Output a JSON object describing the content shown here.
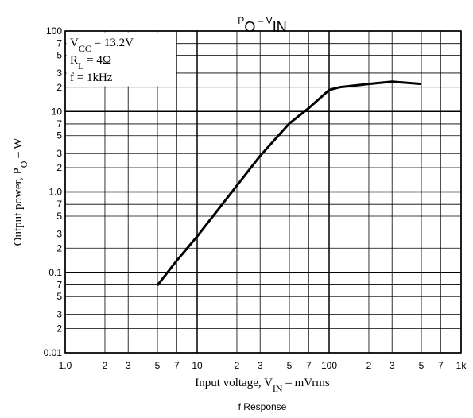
{
  "chart_data": {
    "type": "line",
    "title": [
      {
        "text": "P"
      },
      {
        "text": "O",
        "sub": true
      },
      {
        "text": " – V"
      },
      {
        "text": "IN",
        "sub": true
      }
    ],
    "x_label": [
      {
        "text": "Input voltage, V"
      },
      {
        "text": "IN",
        "sub": true
      },
      {
        "text": " – mVrms"
      }
    ],
    "y_label": [
      {
        "text": "Output power, P"
      },
      {
        "text": "O",
        "sub": true
      },
      {
        "text": " – W"
      }
    ],
    "annotations": [
      [
        {
          "text": "V"
        },
        {
          "text": "CC",
          "sub": true
        },
        {
          "text": " = 13.2V"
        }
      ],
      [
        {
          "text": "R"
        },
        {
          "text": "L",
          "sub": true
        },
        {
          "text": " = 4Ω"
        }
      ],
      [
        {
          "text": "f = 1kHz"
        }
      ]
    ],
    "footer": "f Response",
    "log_x": true,
    "log_y": true,
    "grid": true,
    "xlim": [
      1,
      1000
    ],
    "ylim": [
      0.01,
      100
    ],
    "xticks": [
      {
        "value": 1,
        "label": "1.0"
      },
      2,
      3,
      5,
      7,
      10,
      {
        "value": 20,
        "label": "2"
      },
      {
        "value": 30,
        "label": "3"
      },
      {
        "value": 50,
        "label": "5"
      },
      {
        "value": 70,
        "label": "7"
      },
      100,
      {
        "value": 200,
        "label": "2"
      },
      {
        "value": 300,
        "label": "3"
      },
      {
        "value": 500,
        "label": "5"
      },
      {
        "value": 700,
        "label": "7"
      },
      {
        "value": 1000,
        "label": "1k"
      }
    ],
    "yticks": [
      0.01,
      {
        "value": 0.02,
        "label": "2"
      },
      {
        "value": 0.03,
        "label": "3"
      },
      {
        "value": 0.05,
        "label": "5"
      },
      {
        "value": 0.07,
        "label": "7"
      },
      0.1,
      {
        "value": 0.2,
        "label": "2"
      },
      {
        "value": 0.3,
        "label": "3"
      },
      {
        "value": 0.5,
        "label": "5"
      },
      {
        "value": 0.7,
        "label": "7"
      },
      {
        "value": 1,
        "label": "1.0"
      },
      2,
      3,
      5,
      7,
      10,
      {
        "value": 20,
        "label": "2"
      },
      {
        "value": 30,
        "label": "3"
      },
      {
        "value": 50,
        "label": "5"
      },
      {
        "value": 70,
        "label": "7"
      },
      100
    ],
    "series": [
      {
        "color": "#000000",
        "x": [
          5,
          7,
          10,
          20,
          30,
          50,
          70,
          100,
          120,
          200,
          300,
          500
        ],
        "values": [
          0.069,
          0.14,
          0.28,
          1.2,
          2.8,
          7.1,
          11,
          18.5,
          20,
          22,
          23.5,
          22
        ]
      }
    ]
  }
}
